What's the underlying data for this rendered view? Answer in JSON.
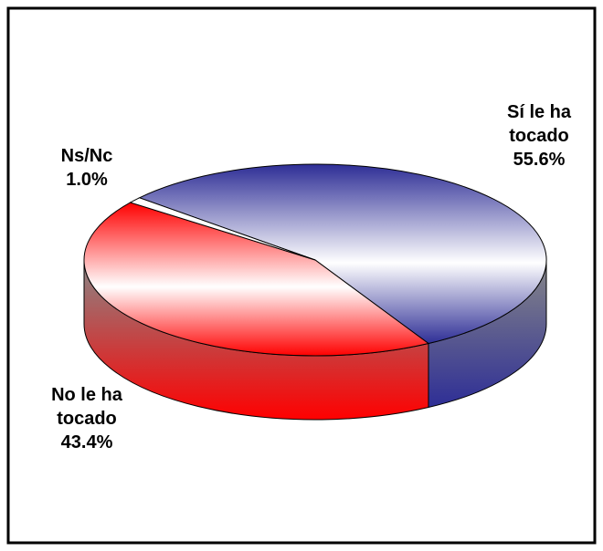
{
  "chart_data": {
    "type": "pie3d",
    "categories": [
      "Sí le ha tocado",
      "No le ha tocado",
      "Ns/Nc"
    ],
    "values": [
      55.6,
      43.4,
      1.0
    ],
    "value_labels": [
      "55.6%",
      "43.4%",
      "1.0%"
    ],
    "colors": [
      "#2e2e96",
      "#ff0000",
      "#ffffff"
    ]
  }
}
